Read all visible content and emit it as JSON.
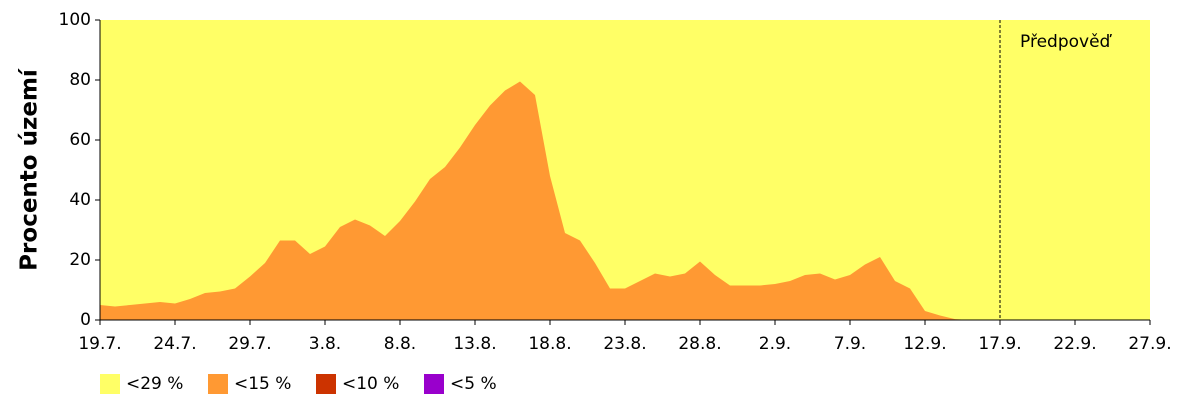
{
  "chart_data": {
    "type": "area",
    "ylabel": "Procento území",
    "forecast_label": "Předpověď",
    "forecast_start": "17.9.",
    "categories": [
      "19.7.",
      null,
      null,
      null,
      null,
      "24.7.",
      null,
      null,
      null,
      null,
      "29.7.",
      null,
      null,
      null,
      null,
      "3.8.",
      null,
      null,
      null,
      null,
      "8.8.",
      null,
      null,
      null,
      null,
      "13.8.",
      null,
      null,
      null,
      null,
      "18.8.",
      null,
      null,
      null,
      null,
      "23.8.",
      null,
      null,
      null,
      null,
      "28.8.",
      null,
      null,
      null,
      null,
      "2.9.",
      null,
      null,
      null,
      null,
      "7.9.",
      null,
      null,
      null,
      null,
      "12.9.",
      null,
      null,
      null,
      null,
      "17.9.",
      null,
      null,
      null,
      null,
      "22.9.",
      null,
      null,
      null,
      null,
      "27.9."
    ],
    "series": [
      {
        "name": "<29 %",
        "color": "#ffff66",
        "values": [
          100,
          100,
          100,
          100,
          100,
          100,
          100,
          100,
          100,
          100,
          100,
          100,
          100,
          100,
          100,
          100,
          100,
          100,
          100,
          100,
          100,
          100,
          100,
          100,
          100,
          100,
          100,
          100,
          100,
          100,
          100,
          100,
          100,
          100,
          100,
          100,
          100,
          100,
          100,
          100,
          100,
          100,
          100,
          100,
          100,
          100,
          100,
          100,
          100,
          100,
          100,
          100,
          100,
          100,
          100,
          100,
          100,
          100,
          100,
          100,
          100,
          100,
          100,
          100,
          100,
          100,
          100,
          100,
          100,
          100,
          100
        ]
      },
      {
        "name": "<15 %",
        "color": "#ff9933",
        "values": [
          5,
          4.5,
          5,
          5.5,
          6,
          5.5,
          7,
          9,
          9.5,
          10.5,
          14.5,
          19,
          26.5,
          26.5,
          22,
          24.5,
          31,
          33.5,
          31.5,
          28,
          33,
          39.5,
          47,
          51,
          57.5,
          65,
          71.5,
          76.5,
          79.5,
          75,
          48,
          29,
          26.5,
          19,
          10.5,
          10.5,
          13,
          15.5,
          14.5,
          15.5,
          19.5,
          15,
          11.5,
          11.5,
          11.5,
          12,
          13,
          15,
          15.5,
          13.5,
          15,
          18.5,
          21,
          13,
          10.5,
          3,
          1.5,
          0.3,
          0,
          0,
          0,
          0,
          0,
          0,
          0,
          0,
          0,
          0,
          0,
          0,
          0
        ]
      },
      {
        "name": "<10 %",
        "color": "#cc3300",
        "values": [
          0,
          0,
          0,
          0,
          0,
          0,
          0,
          0,
          0,
          0,
          0,
          0,
          0,
          0,
          0,
          0,
          0,
          0,
          0,
          0,
          0,
          0,
          0,
          0,
          0,
          0,
          0,
          0,
          0,
          0,
          0,
          0,
          0,
          0,
          0,
          0,
          0,
          0,
          0,
          0,
          0,
          0,
          0,
          0,
          0,
          0,
          0,
          0,
          0,
          0,
          0,
          0,
          0,
          0,
          0,
          0,
          0,
          0,
          0,
          0,
          0,
          0,
          0,
          0,
          0,
          0,
          0,
          0,
          0,
          0,
          0
        ]
      },
      {
        "name": "<5 %",
        "color": "#9900cc",
        "values": [
          0,
          0,
          0,
          0,
          0,
          0,
          0,
          0,
          0,
          0,
          0,
          0,
          0,
          0,
          0,
          0,
          0,
          0,
          0,
          0,
          0,
          0,
          0,
          0,
          0,
          0,
          0,
          0,
          0,
          0,
          0,
          0,
          0,
          0,
          0,
          0,
          0,
          0,
          0,
          0,
          0,
          0,
          0,
          0,
          0,
          0,
          0,
          0,
          0,
          0,
          0,
          0,
          0,
          0,
          0,
          0,
          0,
          0,
          0,
          0,
          0,
          0,
          0,
          0,
          0,
          0,
          0,
          0,
          0,
          0,
          0
        ]
      }
    ],
    "ylim": [
      0,
      100
    ],
    "yticks": [
      0,
      20,
      40,
      60,
      80,
      100
    ],
    "grid": false,
    "legend": "bottom-left"
  }
}
